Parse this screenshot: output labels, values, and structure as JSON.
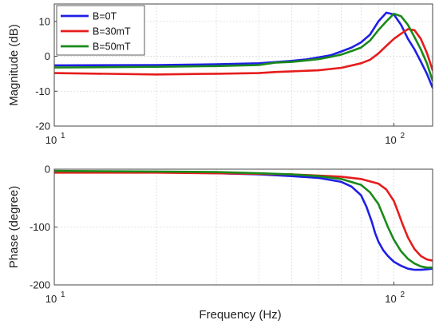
{
  "chart_data": [
    {
      "type": "line",
      "x_scale": "log",
      "xlim": [
        10,
        130
      ],
      "ylim": [
        -20,
        15
      ],
      "xticks": [
        10,
        100
      ],
      "xtick_labels": [
        {
          "base": "10",
          "exp": "1"
        },
        {
          "base": "10",
          "exp": "2"
        }
      ],
      "yticks": [
        -20,
        -10,
        0,
        10
      ],
      "xlabel": "",
      "ylabel": "Magnitude (dB)",
      "grid": true,
      "legend": "top-left",
      "series": [
        {
          "name": "B=0T",
          "color": "#1f1fe6",
          "x": [
            10,
            20,
            30,
            40,
            50,
            55,
            60,
            65,
            70,
            75,
            80,
            85,
            88,
            90,
            95,
            100,
            105,
            110,
            115,
            120,
            125,
            130
          ],
          "y": [
            -2.6,
            -2.5,
            -2.3,
            -2.0,
            -1.3,
            -0.9,
            -0.3,
            0.3,
            1.4,
            2.5,
            4.0,
            6.2,
            8.5,
            10.0,
            12.5,
            12.0,
            9.0,
            5.0,
            2.0,
            -1.5,
            -5.0,
            -9.0
          ]
        },
        {
          "name": "B=30mT",
          "color": "#e61c1c",
          "x": [
            10,
            20,
            30,
            40,
            45,
            50,
            60,
            70,
            80,
            85,
            90,
            95,
            100,
            105,
            110,
            115,
            120,
            125,
            130
          ],
          "y": [
            -4.8,
            -5.2,
            -5.0,
            -4.8,
            -4.5,
            -4.3,
            -4.0,
            -3.3,
            -2.0,
            -1.0,
            0.8,
            3.0,
            5.0,
            6.5,
            7.8,
            7.5,
            5.0,
            1.0,
            -4.0
          ]
        },
        {
          "name": "B=50mT",
          "color": "#1a8a1a",
          "x": [
            10,
            20,
            30,
            40,
            45,
            50,
            55,
            60,
            65,
            70,
            75,
            80,
            85,
            90,
            95,
            100,
            105,
            110,
            115,
            120,
            125,
            130
          ],
          "y": [
            -3.2,
            -3.0,
            -2.8,
            -2.5,
            -1.8,
            -1.6,
            -1.2,
            -0.8,
            -0.2,
            0.5,
            1.5,
            2.5,
            4.5,
            7.5,
            10.0,
            12.2,
            11.5,
            9.0,
            5.5,
            2.0,
            -2.0,
            -7.0
          ]
        }
      ]
    },
    {
      "type": "line",
      "x_scale": "log",
      "xlim": [
        10,
        130
      ],
      "ylim": [
        -200,
        0
      ],
      "xticks": [
        10,
        100
      ],
      "xtick_labels": [
        {
          "base": "10",
          "exp": "1"
        },
        {
          "base": "10",
          "exp": "2"
        }
      ],
      "yticks": [
        -200,
        -100,
        0
      ],
      "xlabel": "Frequency (Hz)",
      "ylabel": "Phase (degree)",
      "grid": true,
      "series": [
        {
          "name": "B=0T",
          "color": "#1f1fe6",
          "x": [
            10,
            20,
            30,
            40,
            50,
            60,
            70,
            75,
            80,
            83,
            86,
            88,
            90,
            93,
            96,
            100,
            105,
            110,
            115,
            120,
            125,
            130
          ],
          "y": [
            -4,
            -5,
            -7,
            -9,
            -12,
            -15,
            -22,
            -30,
            -45,
            -65,
            -90,
            -110,
            -125,
            -140,
            -150,
            -160,
            -167,
            -172,
            -174,
            -174,
            -173,
            -172
          ]
        },
        {
          "name": "B=30mT",
          "color": "#e61c1c",
          "x": [
            10,
            20,
            30,
            40,
            50,
            60,
            70,
            80,
            90,
            95,
            100,
            103,
            106,
            110,
            115,
            120,
            125,
            130
          ],
          "y": [
            -6,
            -6,
            -7,
            -8,
            -9,
            -11,
            -13,
            -17,
            -25,
            -35,
            -55,
            -75,
            -95,
            -118,
            -138,
            -150,
            -156,
            -158
          ]
        },
        {
          "name": "B=50mT",
          "color": "#1a8a1a",
          "x": [
            10,
            20,
            30,
            40,
            50,
            60,
            70,
            80,
            85,
            90,
            93,
            96,
            100,
            105,
            110,
            115,
            120,
            125,
            130
          ],
          "y": [
            -3,
            -4,
            -5,
            -7,
            -9,
            -12,
            -17,
            -27,
            -40,
            -60,
            -80,
            -100,
            -122,
            -142,
            -155,
            -163,
            -168,
            -170,
            -170
          ]
        }
      ]
    }
  ]
}
